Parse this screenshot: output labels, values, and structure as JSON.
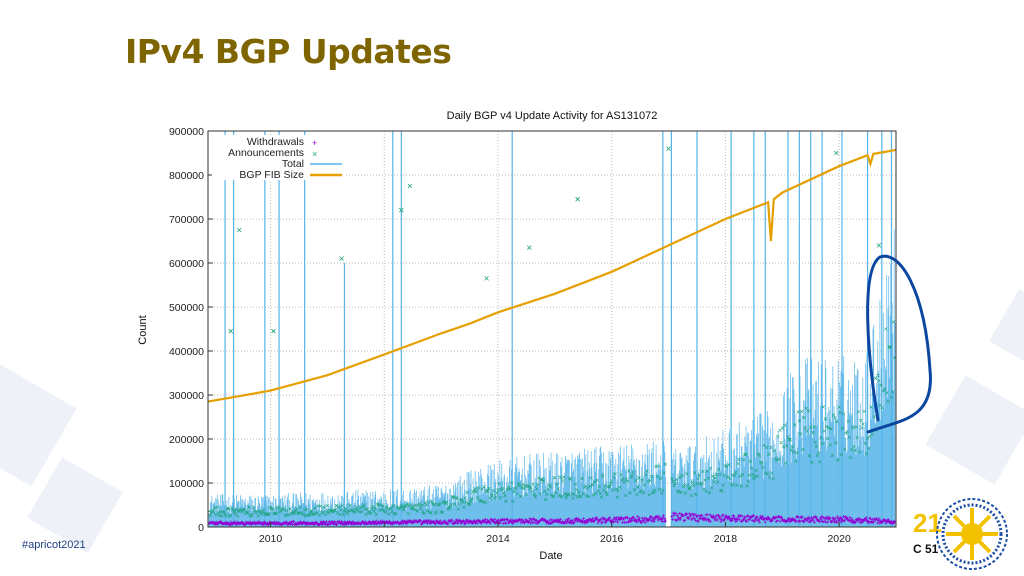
{
  "slide": {
    "title": "IPv4 BGP Updates",
    "hashtag": "#apricot2021",
    "logo_text": [
      "21",
      "C 51"
    ]
  },
  "colors": {
    "title": "#7f6500",
    "withdrawals": "#9400d3",
    "announcements": "#1aa37a",
    "total": "#56b4e9",
    "fib": "#e69f00",
    "annotation": "#0b47a1"
  },
  "chart_data": {
    "type": "line",
    "title": "Daily BGP v4 Update Activity for AS131072",
    "xlabel": "Date",
    "ylabel": "Count",
    "xlim": [
      2008.9,
      2021.0
    ],
    "ylim": [
      0,
      900000
    ],
    "x_ticks": [
      "2010",
      "2012",
      "2014",
      "2016",
      "2018",
      "2020"
    ],
    "y_ticks": [
      "0",
      "100000",
      "200000",
      "300000",
      "400000",
      "500000",
      "600000",
      "700000",
      "800000",
      "900000"
    ],
    "grid": true,
    "legend_position": "top-left",
    "legend": [
      "Withdrawals",
      "Announcements",
      "Total",
      "BGP FIB Size"
    ],
    "series": [
      {
        "name": "Withdrawals",
        "style": "points-plus",
        "x": [
          2009.0,
          2011.0,
          2013.0,
          2014.7,
          2015.0,
          2016.9,
          2017.1,
          2018.0,
          2019.0,
          2020.0,
          2021.0
        ],
        "y": [
          8000,
          9000,
          11000,
          14000,
          13000,
          18000,
          24000,
          20000,
          17000,
          18000,
          12000
        ]
      },
      {
        "name": "Announcements",
        "style": "points-x",
        "x": [
          2009.0,
          2010.0,
          2011.0,
          2012.0,
          2013.0,
          2013.7,
          2014.5,
          2015.5,
          2016.5,
          2016.95,
          2017.1,
          2018.0,
          2018.8,
          2019.3,
          2020.0,
          2020.5,
          2020.9
        ],
        "y": [
          35000,
          35000,
          38000,
          40000,
          45000,
          75000,
          85000,
          90000,
          100000,
          110000,
          90000,
          110000,
          150000,
          210000,
          210000,
          220000,
          380000
        ]
      },
      {
        "name": "Total",
        "style": "impulses",
        "x": [
          2009.0,
          2010.0,
          2011.0,
          2012.0,
          2013.0,
          2013.7,
          2014.5,
          2015.5,
          2016.5,
          2016.95,
          2017.1,
          2018.0,
          2018.8,
          2019.3,
          2020.0,
          2020.5,
          2020.9
        ],
        "y": [
          50000,
          50000,
          55000,
          58000,
          65000,
          95000,
          110000,
          120000,
          130000,
          140000,
          120000,
          150000,
          180000,
          260000,
          260000,
          270000,
          460000
        ]
      },
      {
        "name": "BGP FIB Size",
        "style": "line",
        "x": [
          2008.9,
          2010.0,
          2011.0,
          2012.0,
          2013.0,
          2013.5,
          2014.0,
          2015.0,
          2016.0,
          2017.0,
          2018.0,
          2018.75,
          2018.8,
          2018.85,
          2019.0,
          2020.0,
          2020.5,
          2020.55,
          2020.6,
          2021.0
        ],
        "y": [
          285000,
          310000,
          345000,
          392000,
          440000,
          462000,
          488000,
          530000,
          580000,
          640000,
          700000,
          738000,
          650000,
          745000,
          760000,
          820000,
          845000,
          825000,
          848000,
          857000
        ]
      }
    ],
    "total_spikes": {
      "x": [
        2009.2,
        2009.35,
        2009.9,
        2010.15,
        2010.6,
        2011.3,
        2012.15,
        2012.3,
        2014.25,
        2016.9,
        2017.05,
        2017.5,
        2018.1,
        2018.5,
        2018.7,
        2019.1,
        2019.3,
        2019.5,
        2019.7,
        2020.05,
        2020.5,
        2020.75,
        2020.92
      ],
      "y": [
        900000,
        900000,
        900000,
        900000,
        900000,
        600000,
        900000,
        900000,
        900000,
        900000,
        900000,
        900000,
        900000,
        900000,
        900000,
        900000,
        900000,
        900000,
        900000,
        900000,
        900000,
        900000,
        900000
      ]
    },
    "announcement_outliers": {
      "x": [
        2009.3,
        2009.45,
        2010.05,
        2011.25,
        2012.3,
        2012.45,
        2013.8,
        2014.55,
        2015.4,
        2017.0,
        2019.95,
        2020.7
      ],
      "y": [
        445000,
        675000,
        445000,
        610000,
        720000,
        775000,
        565000,
        635000,
        745000,
        860000,
        850000,
        640000
      ]
    },
    "annotation": "hand-drawn loop around late-2020 surge"
  }
}
